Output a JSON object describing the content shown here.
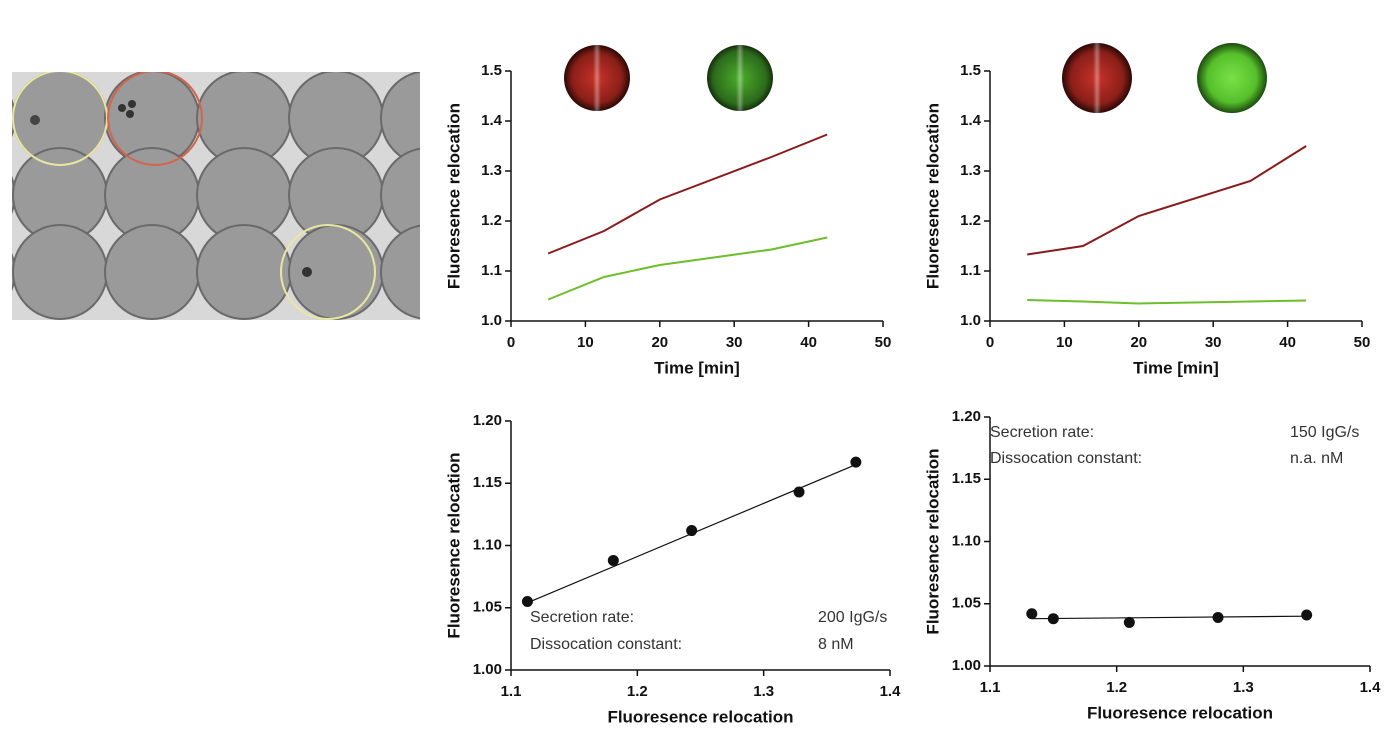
{
  "chart_data": [
    {
      "type": "line",
      "x_label": "Time [min]",
      "y_label": "Fluoresence relocation",
      "x": [
        5,
        12.5,
        20,
        35,
        42.5
      ],
      "series": [
        {
          "color": "#8b1a1a",
          "values": [
            1.135,
            1.18,
            1.243,
            1.328,
            1.373
          ]
        },
        {
          "color": "#6cbf2a",
          "values": [
            1.043,
            1.088,
            1.112,
            1.143,
            1.167
          ]
        }
      ],
      "xlim": [
        0,
        50
      ],
      "xticks": [
        0,
        10,
        20,
        30,
        40,
        50
      ],
      "ylim": [
        1.0,
        1.5
      ],
      "yticks": [
        {
          "value": 1.0,
          "label": "1.0"
        },
        1.1,
        1.2,
        1.3,
        1.4,
        1.5
      ]
    },
    {
      "type": "line",
      "x_label": "Time [min]",
      "y_label": "Fluoresence relocation",
      "x": [
        5,
        12.5,
        20,
        35,
        42.5
      ],
      "series": [
        {
          "color": "#8b1a1a",
          "values": [
            1.133,
            1.15,
            1.21,
            1.28,
            1.35
          ]
        },
        {
          "color": "#6cbf2a",
          "values": [
            1.042,
            1.039,
            1.035,
            1.039,
            1.041
          ]
        }
      ],
      "xlim": [
        0,
        50
      ],
      "xticks": [
        0,
        10,
        20,
        30,
        40,
        50
      ],
      "ylim": [
        1.0,
        1.5
      ],
      "yticks": [
        {
          "value": 1.0,
          "label": "1.0"
        },
        1.1,
        1.2,
        1.3,
        1.4,
        1.5
      ]
    },
    {
      "type": "scatter",
      "x_label": "Fluoresence relocation",
      "y_label": "Fluoresence relocation",
      "x": [
        1.113,
        1.181,
        1.243,
        1.328,
        1.373
      ],
      "values": [
        1.055,
        1.088,
        1.112,
        1.143,
        1.167
      ],
      "color": "#111111",
      "fit": {
        "x": [
          1.113,
          1.373
        ],
        "y": [
          1.054,
          1.165
        ]
      },
      "annotations": [
        {
          "label": "Secretion rate:",
          "value": "200 IgG/s"
        },
        {
          "label": "Dissocation constant:",
          "value": "8 nM"
        }
      ],
      "xlim": [
        1.1,
        1.4
      ],
      "xticks": [
        1.1,
        1.2,
        1.3,
        1.4
      ],
      "ylim": [
        1.0,
        1.2
      ],
      "yticks": [
        {
          "value": 1.0,
          "label": "1.00"
        },
        1.05,
        {
          "value": 1.1,
          "label": "1.10"
        },
        1.15,
        {
          "value": 1.2,
          "label": "1.20"
        }
      ]
    },
    {
      "type": "scatter",
      "x_label": "Fluoresence relocation",
      "y_label": "Fluoresence relocation",
      "x": [
        1.133,
        1.15,
        1.21,
        1.28,
        1.35
      ],
      "values": [
        1.042,
        1.038,
        1.035,
        1.039,
        1.041
      ],
      "color": "#111111",
      "fit": {
        "x": [
          1.133,
          1.35
        ],
        "y": [
          1.038,
          1.04
        ]
      },
      "annotations": [
        {
          "label": "Secretion rate:",
          "value": "150 IgG/s"
        },
        {
          "label": "Dissocation constant:",
          "value": "n.a. nM"
        }
      ],
      "xlim": [
        1.1,
        1.4
      ],
      "xticks": [
        1.1,
        1.2,
        1.3,
        1.4
      ],
      "ylim": [
        1.0,
        1.2
      ],
      "yticks": [
        {
          "value": 1.0,
          "label": "1.00"
        },
        1.05,
        {
          "value": 1.1,
          "label": "1.10"
        },
        1.15,
        {
          "value": 1.2,
          "label": "1.20"
        }
      ]
    }
  ]
}
